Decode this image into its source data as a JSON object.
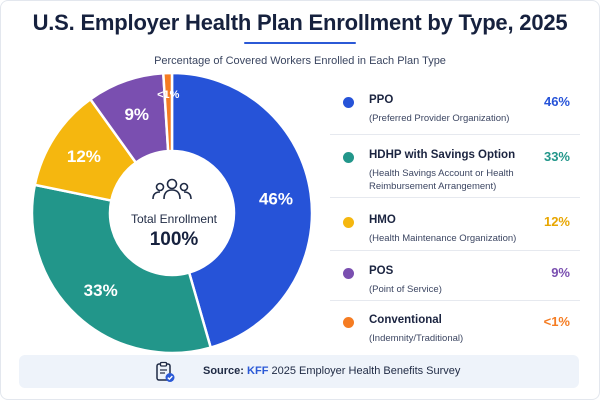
{
  "header": {
    "title": "U.S. Employer Health Plan Enrollment by Type, 2025",
    "subtitle": "Percentage of Covered Workers Enrolled in Each Plan Type"
  },
  "center": {
    "icon": "people-group-icon",
    "label": "Total Enrollment",
    "value": "100%"
  },
  "chart_data": {
    "type": "pie",
    "title": "U.S. Employer Health Plan Enrollment by Type, 2025",
    "subtitle": "Percentage of Covered Workers Enrolled in Each Plan Type",
    "donut": true,
    "legend_position": "right",
    "slices": [
      {
        "name": "PPO",
        "description": "(Preferred Provider Organization)",
        "value": 46,
        "label": "46%",
        "color": "#2653d8",
        "value_color": "#2653d8"
      },
      {
        "name": "HDHP with Savings Option",
        "description": "(Health Savings Account or Health Reimbursement Arrangement)",
        "value": 33,
        "label": "33%",
        "color": "#22968a",
        "value_color": "#22968a"
      },
      {
        "name": "HMO",
        "description": "(Health Maintenance Organization)",
        "value": 12,
        "label": "12%",
        "color": "#f5b70f",
        "value_color": "#e8a600"
      },
      {
        "name": "POS",
        "description": "(Point of Service)",
        "value": 9,
        "label": "9%",
        "color": "#7a4fb0",
        "value_color": "#7a4fb0"
      },
      {
        "name": "Conventional",
        "description": "(Indemnity/Traditional)",
        "value": 1,
        "label": "<1%",
        "color": "#f57c22",
        "value_color": "#f57c22"
      }
    ]
  },
  "source": {
    "icon": "clipboard-check-icon",
    "prefix": "Source:",
    "org": "KFF",
    "rest": " 2025 Employer Health Benefits Survey"
  }
}
